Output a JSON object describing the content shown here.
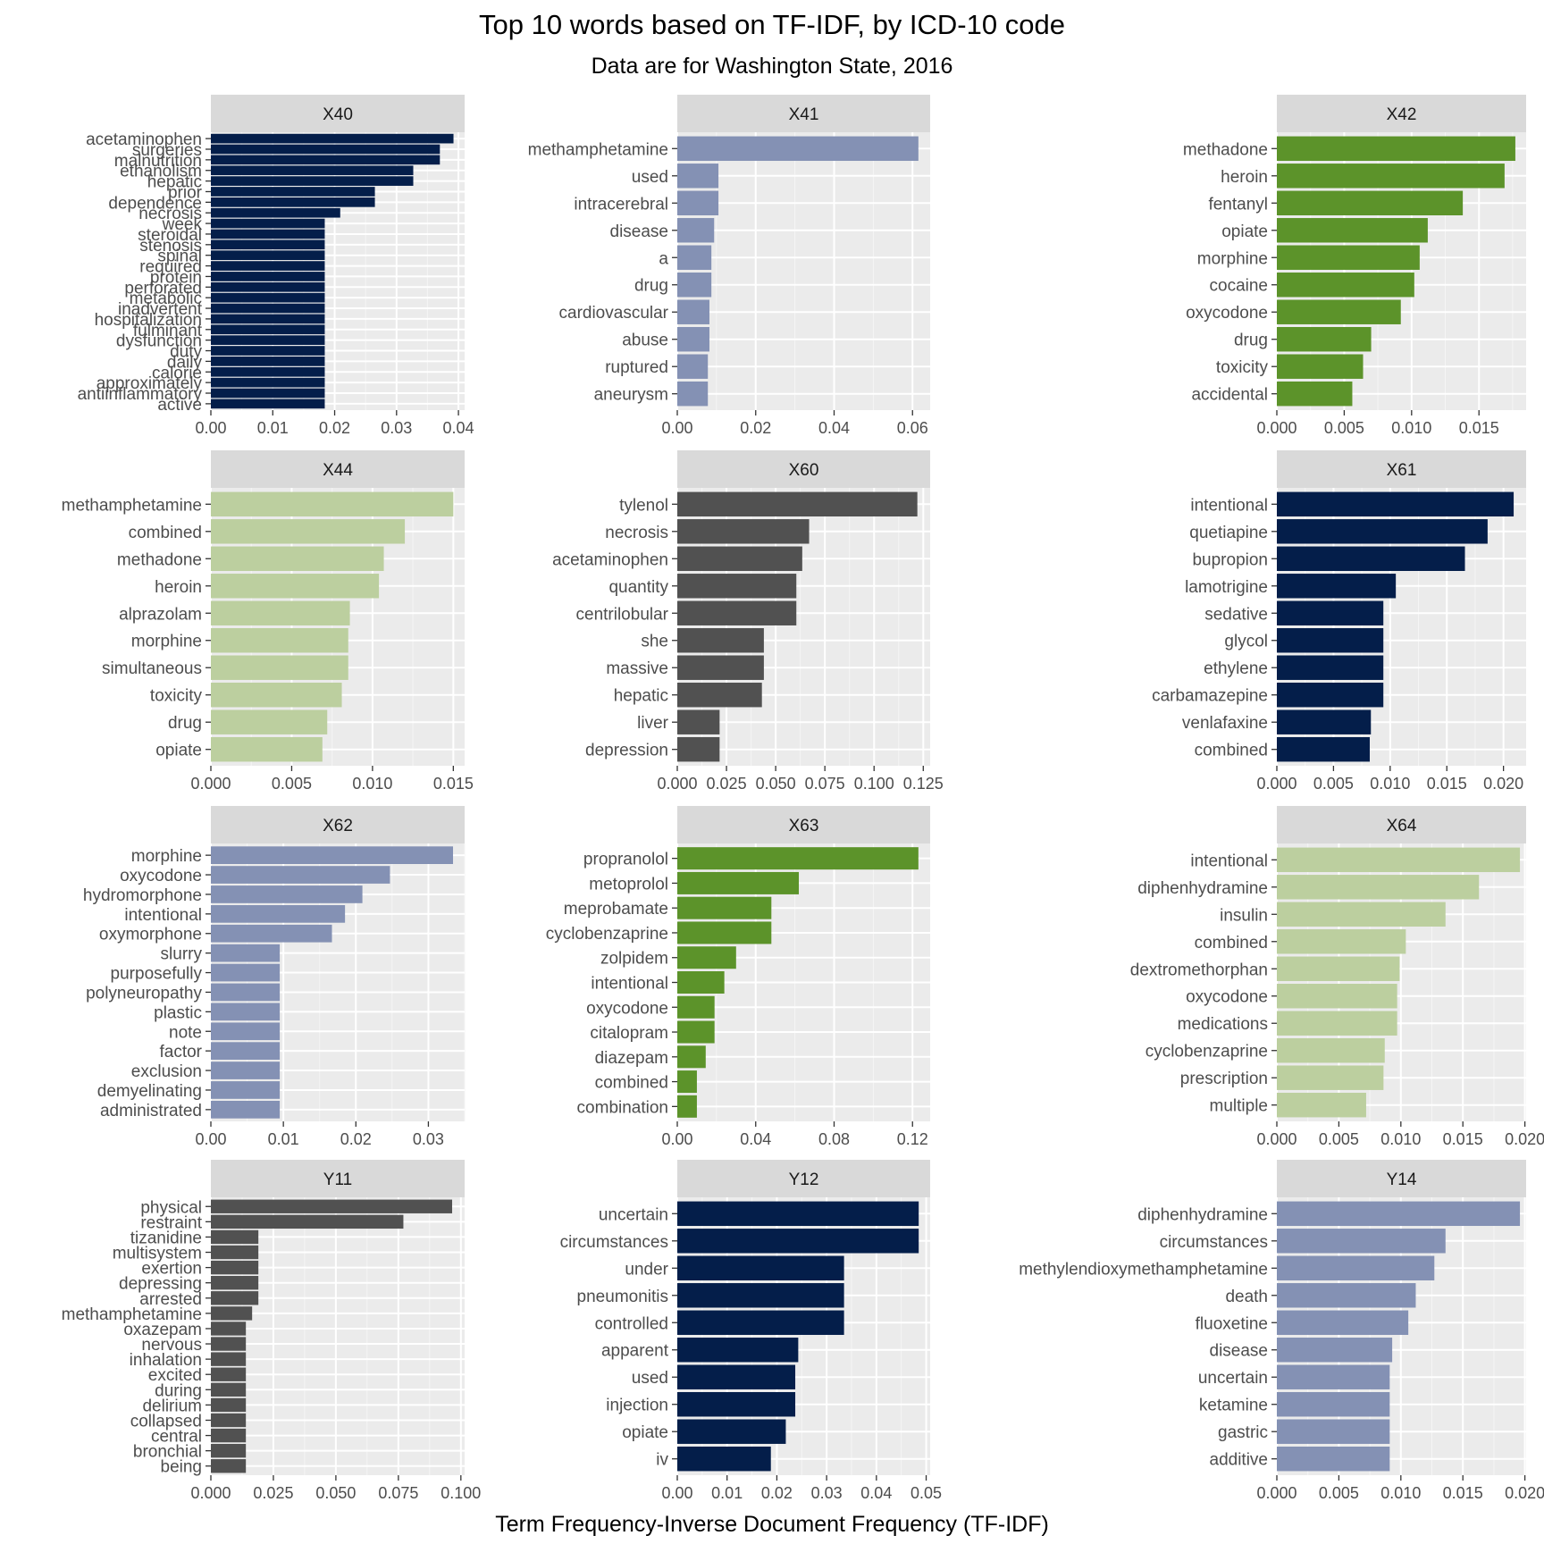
{
  "chart_data": {
    "type": "bar",
    "orientation": "horizontal",
    "title": "Top 10 words based on TF-IDF, by ICD-10 code",
    "subtitle": "Data are for Washington State, 2016",
    "xlabel": "Term Frequency-Inverse Document Frequency (TF-IDF)",
    "grid": true,
    "panels": [
      {
        "code": "X40",
        "color": "#041e4a",
        "xlim": [
          0,
          0.041
        ],
        "ticks": [
          0,
          0.01,
          0.02,
          0.03,
          0.04
        ],
        "tick_labels": [
          "0.00",
          "0.01",
          "0.02",
          "0.03",
          "0.04"
        ],
        "categories": [
          "acetaminophen",
          "surgeries",
          "malnutrition",
          "ethanolism",
          "hepatic",
          "prior",
          "dependence",
          "necrosis",
          "week",
          "steroidal",
          "stenosis",
          "spinal",
          "required",
          "protein",
          "perforated",
          "metabolic",
          "inadvertent",
          "hospitalization",
          "fulminant",
          "dysfunction",
          "duty",
          "daily",
          "calorie",
          "approximately",
          "antiinflammatory",
          "active"
        ],
        "values": [
          0.0392,
          0.037,
          0.037,
          0.0327,
          0.0327,
          0.0265,
          0.0265,
          0.0209,
          0.0184,
          0.0184,
          0.0184,
          0.0184,
          0.0184,
          0.0184,
          0.0184,
          0.0184,
          0.0184,
          0.0184,
          0.0184,
          0.0184,
          0.0184,
          0.0184,
          0.0184,
          0.0184,
          0.0184,
          0.0184
        ]
      },
      {
        "code": "X41",
        "color": "#8491b4",
        "xlim": [
          0,
          0.0645
        ],
        "ticks": [
          0,
          0.02,
          0.04,
          0.06
        ],
        "tick_labels": [
          "0.00",
          "0.02",
          "0.04",
          "0.06"
        ],
        "categories": [
          "methamphetamine",
          "used",
          "intracerebral",
          "disease",
          "a",
          "drug",
          "cardiovascular",
          "abuse",
          "ruptured",
          "aneurysm"
        ],
        "values": [
          0.0615,
          0.0105,
          0.0105,
          0.0094,
          0.0087,
          0.0087,
          0.0082,
          0.0082,
          0.0078,
          0.0078
        ]
      },
      {
        "code": "X42",
        "color": "#5c932a",
        "xlim": [
          0,
          0.0185
        ],
        "ticks": [
          0,
          0.005,
          0.01,
          0.015
        ],
        "tick_labels": [
          "0.000",
          "0.005",
          "0.010",
          "0.015"
        ],
        "categories": [
          "methadone",
          "heroin",
          "fentanyl",
          "opiate",
          "morphine",
          "cocaine",
          "oxycodone",
          "drug",
          "toxicity",
          "accidental"
        ],
        "values": [
          0.0177,
          0.0169,
          0.0138,
          0.0112,
          0.0106,
          0.0102,
          0.0092,
          0.007,
          0.0064,
          0.0056
        ]
      },
      {
        "code": "X44",
        "color": "#bccf9f",
        "xlim": [
          0,
          0.0157
        ],
        "ticks": [
          0,
          0.005,
          0.01,
          0.015
        ],
        "tick_labels": [
          "0.000",
          "0.005",
          "0.010",
          "0.015"
        ],
        "categories": [
          "methamphetamine",
          "combined",
          "methadone",
          "heroin",
          "alprazolam",
          "morphine",
          "simultaneous",
          "toxicity",
          "drug",
          "opiate"
        ],
        "values": [
          0.015,
          0.012,
          0.0107,
          0.0104,
          0.0086,
          0.0085,
          0.0085,
          0.0081,
          0.0072,
          0.0069
        ]
      },
      {
        "code": "X60",
        "color": "#515151",
        "xlim": [
          0,
          0.1285
        ],
        "ticks": [
          0,
          0.025,
          0.05,
          0.075,
          0.1,
          0.125
        ],
        "tick_labels": [
          "0.000",
          "0.025",
          "0.050",
          "0.075",
          "0.100",
          "0.125"
        ],
        "categories": [
          "tylenol",
          "necrosis",
          "acetaminophen",
          "quantity",
          "centrilobular",
          "she",
          "massive",
          "hepatic",
          "liver",
          "depression"
        ],
        "values": [
          0.122,
          0.067,
          0.0635,
          0.0605,
          0.0605,
          0.044,
          0.044,
          0.043,
          0.0215,
          0.0215
        ]
      },
      {
        "code": "X61",
        "color": "#041e4a",
        "xlim": [
          0,
          0.022
        ],
        "ticks": [
          0,
          0.005,
          0.01,
          0.015,
          0.02
        ],
        "tick_labels": [
          "0.000",
          "0.005",
          "0.010",
          "0.015",
          "0.020"
        ],
        "categories": [
          "intentional",
          "quetiapine",
          "bupropion",
          "lamotrigine",
          "sedative",
          "glycol",
          "ethylene",
          "carbamazepine",
          "venlafaxine",
          "combined"
        ],
        "values": [
          0.0209,
          0.0186,
          0.0166,
          0.0105,
          0.0094,
          0.0094,
          0.0094,
          0.0094,
          0.0083,
          0.0082
        ]
      },
      {
        "code": "X62",
        "color": "#8491b4",
        "xlim": [
          0,
          0.035
        ],
        "ticks": [
          0,
          0.01,
          0.02,
          0.03
        ],
        "tick_labels": [
          "0.00",
          "0.01",
          "0.02",
          "0.03"
        ],
        "categories": [
          "morphine",
          "oxycodone",
          "hydromorphone",
          "intentional",
          "oxymorphone",
          "slurry",
          "purposefully",
          "polyneuropathy",
          "plastic",
          "note",
          "factor",
          "exclusion",
          "demyelinating",
          "administrated"
        ],
        "values": [
          0.0334,
          0.0247,
          0.0209,
          0.0185,
          0.0167,
          0.0095,
          0.0095,
          0.0095,
          0.0095,
          0.0095,
          0.0095,
          0.0095,
          0.0095,
          0.0095
        ]
      },
      {
        "code": "X63",
        "color": "#5c932a",
        "xlim": [
          0,
          0.129
        ],
        "ticks": [
          0,
          0.04,
          0.08,
          0.12
        ],
        "tick_labels": [
          "0.00",
          "0.04",
          "0.08",
          "0.12"
        ],
        "categories": [
          "propranolol",
          "metoprolol",
          "meprobamate",
          "cyclobenzaprine",
          "zolpidem",
          "intentional",
          "oxycodone",
          "citalopram",
          "diazepam",
          "combined",
          "combination"
        ],
        "values": [
          0.123,
          0.062,
          0.048,
          0.048,
          0.03,
          0.024,
          0.019,
          0.019,
          0.0145,
          0.01,
          0.01
        ]
      },
      {
        "code": "X64",
        "color": "#bccf9f",
        "xlim": [
          0,
          0.0201
        ],
        "ticks": [
          0,
          0.005,
          0.01,
          0.015,
          0.02
        ],
        "tick_labels": [
          "0.000",
          "0.005",
          "0.010",
          "0.015",
          "0.020"
        ],
        "categories": [
          "intentional",
          "diphenhydramine",
          "insulin",
          "combined",
          "dextromethorphan",
          "oxycodone",
          "medications",
          "cyclobenzaprine",
          "prescription",
          "multiple"
        ],
        "values": [
          0.0196,
          0.0163,
          0.0136,
          0.0104,
          0.0099,
          0.0097,
          0.0097,
          0.0087,
          0.0086,
          0.0072
        ]
      },
      {
        "code": "Y11",
        "color": "#515151",
        "xlim": [
          0,
          0.1015
        ],
        "ticks": [
          0,
          0.025,
          0.05,
          0.075,
          0.1
        ],
        "tick_labels": [
          "0.000",
          "0.025",
          "0.050",
          "0.075",
          "0.100"
        ],
        "categories": [
          "physical",
          "restraint",
          "tizanidine",
          "multisystem",
          "exertion",
          "depressing",
          "arrested",
          "methamphetamine",
          "oxazepam",
          "nervous",
          "inhalation",
          "excited",
          "during",
          "delirium",
          "collapsed",
          "central",
          "bronchial",
          "being"
        ],
        "values": [
          0.0965,
          0.077,
          0.019,
          0.019,
          0.019,
          0.019,
          0.019,
          0.0165,
          0.014,
          0.014,
          0.014,
          0.014,
          0.014,
          0.014,
          0.014,
          0.014,
          0.014,
          0.014
        ]
      },
      {
        "code": "Y12",
        "color": "#041e4a",
        "xlim": [
          0,
          0.0508
        ],
        "ticks": [
          0,
          0.01,
          0.02,
          0.03,
          0.04,
          0.05
        ],
        "tick_labels": [
          "0.00",
          "0.01",
          "0.02",
          "0.03",
          "0.04",
          "0.05"
        ],
        "categories": [
          "uncertain",
          "circumstances",
          "under",
          "pneumonitis",
          "controlled",
          "apparent",
          "used",
          "injection",
          "opiate",
          "iv"
        ],
        "values": [
          0.0485,
          0.0485,
          0.0335,
          0.0335,
          0.0335,
          0.0243,
          0.0237,
          0.0237,
          0.0218,
          0.0188
        ]
      },
      {
        "code": "Y14",
        "color": "#8491b4",
        "xlim": [
          0,
          0.0201
        ],
        "ticks": [
          0,
          0.005,
          0.01,
          0.015,
          0.02
        ],
        "tick_labels": [
          "0.000",
          "0.005",
          "0.010",
          "0.015",
          "0.020"
        ],
        "categories": [
          "diphenhydramine",
          "circumstances",
          "methylendioxymethamphetamine",
          "death",
          "fluoxetine",
          "disease",
          "uncertain",
          "ketamine",
          "gastric",
          "additive"
        ],
        "values": [
          0.0196,
          0.0136,
          0.0127,
          0.0112,
          0.0106,
          0.0093,
          0.0091,
          0.0091,
          0.0091,
          0.0091
        ]
      }
    ]
  }
}
